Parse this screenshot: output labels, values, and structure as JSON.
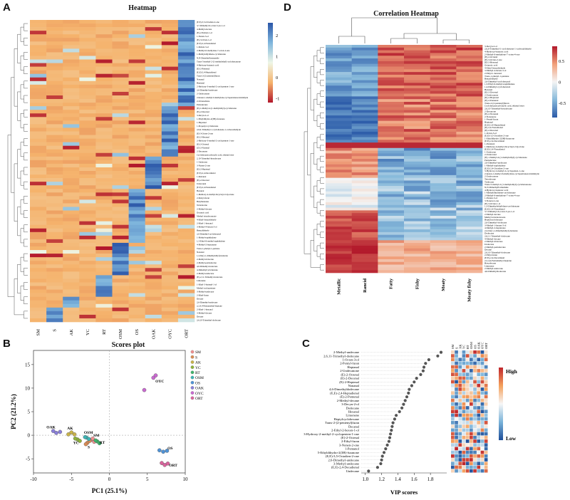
{
  "panels": {
    "a": {
      "letter": "A",
      "title": "Heatmap"
    },
    "b": {
      "letter": "B",
      "title": "Scores plot"
    },
    "c": {
      "letter": "C"
    },
    "d": {
      "letter": "D",
      "title": "Correlation Heatmap"
    }
  },
  "chart_data": [
    {
      "id": "A",
      "type": "heatmap",
      "title": "Heatmap",
      "columns": [
        "SM",
        "S",
        "AK",
        "YC",
        "RT",
        "OSM",
        "OS",
        "OAK",
        "OYC",
        "ORT"
      ],
      "colorbar": {
        "ticks": [
          2,
          1,
          0,
          -1
        ],
        "range": [
          -1.2,
          2.6
        ],
        "colors": [
          "#2b56a8",
          "#7fb6dd",
          "#eef6e6",
          "#f5b26b",
          "#b2182b"
        ]
      },
      "rows": [
        "(E,E)-3,5-Octadien-2-one",
        "3,7-Dimethyl-6-octen-3-yn-1-ol",
        "4-Methyl-decane",
        "(E)-2-Penten-1-ol",
        "1-Nonen-3-ol",
        "(E)-3-Octen-1-ol",
        "(E,E)-2,4-Nonadienal",
        "1-Penten-3-ol",
        "2-Methyl-6-methylene-7-octen-4-one",
        "1-Methylethylidene-cyclohexane",
        "N,N-Dimethylformamide",
        "Trans-5-methyl-2-(1-methylethyl)-cyclohexanone",
        "4-Hydroxy-butanoic acid",
        "(E)-2-Pentenal",
        "(E,E)-2,4-Heptadienal",
        "Trans-2-(2-pentenyl)furan",
        "Nonanal",
        "Heptanal",
        "2-Hydroxy-3-methyl-2-cyclopenten-1-one",
        "2,6-Dimethyl-undecane",
        "2-Undecanone",
        "2-hexen-1-methyl-6-methylene-cyclopentaneacetaldehyde",
        "2-Octanedione",
        "Pentadecane",
        "(E)-1-Methyl-4-(1-methylethyl)-cyclohexene",
        "(E)-2-Decenal",
        "3-Decyn-2-ol",
        "1-Ethyldihydro-2(3H)-furanone",
        "1-Heptanol",
        "1-Propenyl-cyclohexane",
        "2,6,6-Trimethyl-1-cyclohexene-1-carboxaldehyde",
        "(E)-3-Octen-2-one",
        "(E)-2-Hexenal",
        "2-Hydroxy-3-methyl-2-cyclopenten-1-one",
        "(E)-2-Octenal",
        "(Z)-2-Nonenal",
        "2-Decanone",
        "Cyclohexanecarboxylic acid, ethenyl ester",
        "2,10-Trimethyl-hexadecane",
        "1-Undecene",
        "3-Nonen-2-one",
        "(E)-2-Heptenal",
        "(E,E)-2,4-Decadienal",
        "1-Pentanol",
        "(E)-2-Decenal",
        "Undecanal",
        "(E,E)-2,4-Nonadienal",
        "Hexanal",
        "1-Methoxy-4-methyl-bicyclo[2.2.2]octane",
        "2-Pentyl-furan",
        "Butylbenzene",
        "Tetradecane",
        "2-Methyl-decane",
        "Octanoic acid",
        "Methyl tetradecanoate",
        "4-Ethyl-benzaldehyde",
        "2-Ethyl-1-hexanol",
        "3-Methyl-4-hexen-3-ol",
        "Benzaldehyde",
        "2,6-Dimethyl-cyclohexanol",
        "1-Methyl-naphthalene",
        "1,3-Ethyl-6-methyl-naphthalene",
        "4-Methyl-2-heptanone",
        "Trans-1-phenyl-1-pentene",
        "Nonanal",
        "1,4-bis(1,1-dimethylethyl)-benzene",
        "2-Methyl-tridecane",
        "2-Methyl-pentadecane",
        "4,6-Dimethyl-dodecane",
        "4-Dimethylcyclohexane",
        "2-Methyl-undecane",
        "(E)-2,11-Trimethyl-dodecane",
        "Limonene",
        "1-Ethyl-3-butenyl-1-ol",
        "Methyl-cyclopentane",
        "3-Methyl-undecane",
        "2-Ethyl-furan",
        "Decane",
        "2,6-Dimethyl-undecane",
        "2,2,4,4-Pentamethyl-heptane",
        "2-Ethyl-1-hexanol",
        "3-Methyl-decane",
        "Decane",
        "2,6,10-Trimethyl-dodecane"
      ]
    },
    {
      "id": "B",
      "type": "scatter",
      "title": "Scores plot",
      "xlabel": "PC1 (25.1%)",
      "ylabel": "PC2 (21.2%)",
      "xlim": [
        -10,
        10
      ],
      "ylim": [
        -8,
        18
      ],
      "xticks": [
        -10,
        -5,
        0,
        5,
        10
      ],
      "yticks": [
        -5,
        0,
        5,
        10,
        15
      ],
      "legend": [
        "SM",
        "S",
        "AK",
        "YC",
        "RT",
        "OSM",
        "OS",
        "OAK",
        "OYC",
        "ORT"
      ],
      "legend_colors": [
        "#ef8f8f",
        "#d98c55",
        "#c9b34a",
        "#8fb33b",
        "#3fb36b",
        "#3db4b4",
        "#4f93d6",
        "#8a7fd9",
        "#c96ad0",
        "#d9649d"
      ],
      "point_labels": [
        "OAK",
        "AK",
        "OSM",
        "YC",
        "SM",
        "S",
        "RT",
        "OYC",
        "OS",
        "ORT"
      ],
      "series": [
        {
          "name": "SM",
          "x": [
            -2.4,
            -2.0,
            -2.2
          ],
          "y": [
            -1.0,
            -1.4,
            -0.7
          ]
        },
        {
          "name": "S",
          "x": [
            -2.9,
            -2.6,
            -3.1
          ],
          "y": [
            -1.6,
            -1.2,
            -1.9
          ]
        },
        {
          "name": "AK",
          "x": [
            -5.0,
            -4.6,
            -5.4
          ],
          "y": [
            0.6,
            0.2,
            0.2
          ]
        },
        {
          "name": "YC",
          "x": [
            -4.2,
            -3.9,
            -4.5
          ],
          "y": [
            -0.9,
            -1.2,
            -0.7
          ]
        },
        {
          "name": "RT",
          "x": [
            -1.6,
            -1.3,
            -1.8
          ],
          "y": [
            -1.3,
            -1.7,
            -1.1
          ]
        },
        {
          "name": "OSM",
          "x": [
            -3.0,
            -2.7,
            -3.2
          ],
          "y": [
            -0.5,
            -0.8,
            -0.4
          ]
        },
        {
          "name": "OS",
          "x": [
            6.6,
            7.1,
            7.6
          ],
          "y": [
            -3.2,
            -3.5,
            -3.3
          ]
        },
        {
          "name": "OAK",
          "x": [
            -7.4,
            -7.0,
            -6.5
          ],
          "y": [
            0.9,
            0.5,
            0.7
          ]
        },
        {
          "name": "OYC",
          "x": [
            5.8,
            6.1,
            4.6
          ],
          "y": [
            12.2,
            12.7,
            9.6
          ]
        },
        {
          "name": "ORT",
          "x": [
            6.9,
            7.3,
            7.7
          ],
          "y": [
            -5.9,
            -6.3,
            -6.0
          ]
        }
      ]
    },
    {
      "id": "C",
      "type": "scatter",
      "xlabel": "VIP scores",
      "xlim": [
        0.95,
        2.0
      ],
      "xticks": [
        1.0,
        1.2,
        1.4,
        1.6,
        1.8
      ],
      "columns": [
        "SM",
        "S",
        "AK",
        "YC",
        "RT",
        "OSM",
        "OS",
        "OAK",
        "OYC",
        "ORT"
      ],
      "colorbar_labels": {
        "high": "High",
        "low": "Low"
      },
      "colorbar_colors": [
        "#c0262c",
        "#f4a05c",
        "#f7f7f7",
        "#7ab3d9",
        "#1e4f9a"
      ],
      "compounds": [
        "2-Methyl-undecane",
        "2,6,11-Trimethyl-dodecane",
        "1-Octen-3-ol",
        "2-Pentyl-furan",
        "Heptanal",
        "2-Undecanone",
        "(E)-2-Octenal",
        "(E)-2-Decenal",
        "(E)-2-Heptenal",
        "Nonanal",
        "4,6-Dimethyldodecane",
        "(E,E)-2,4-Heptadienal",
        "(E)-2-Pentenal",
        "2-Methyl-decane",
        "3-Decyn-2-ol",
        "Dodecane",
        "Hexanal",
        "Limonene",
        "Heptylcyclohexane",
        "Trans-2-(2-pentenyl)furan",
        "Decanal",
        "2-Ethyl-2-hexen-1-ol",
        "3-Hydroxy-2-methyl-2-cyclopenten-1-one",
        "(E)-2-Octenal",
        "2-Ethyl-furan",
        "3-Nonen-2-one",
        "1-Pentanol",
        "5-Ethyldihydro-2(3H)-furanone",
        "(E,E)-3,5-Octadien-2-one",
        "2,6-Dimethyl-undecane",
        "3-Methyl-undecane",
        "(E,E)-2,4-Decadienal",
        "Undecane"
      ],
      "vip": [
        1.93,
        1.89,
        1.78,
        1.74,
        1.72,
        1.71,
        1.68,
        1.63,
        1.6,
        1.57,
        1.54,
        1.53,
        1.51,
        1.49,
        1.47,
        1.45,
        1.42,
        1.38,
        1.36,
        1.34,
        1.33,
        1.32,
        1.31,
        1.3,
        1.29,
        1.27,
        1.25,
        1.23,
        1.21,
        1.2,
        1.19,
        1.15,
        1.04
      ]
    },
    {
      "id": "D",
      "type": "heatmap",
      "title": "Correlation Heatmap",
      "columns": [
        "Metallic",
        "Rancid",
        "Fatty",
        "Fishy",
        "Meaty",
        "Meaty fishy"
      ],
      "colorbar": {
        "ticks": [
          0.5,
          0,
          -0.5
        ],
        "range": [
          -0.85,
          0.85
        ],
        "colors": [
          "#2b5aa8",
          "#88badb",
          "#f4f4f4",
          "#f1a07a",
          "#b2182b"
        ]
      },
      "rows": [
        "3-Decyn-2-ol",
        "2,6,6-Trimethyl-1-cyclohexene-1-carboxaldehyde",
        "4-Hydroxy-butanoic acid",
        "2-Methyl-6-methylene-7-octen-4-one",
        "(E)-2-Octenal",
        "(E)-3-Octen-2-one",
        "(E)-2-Hexenal",
        "Octanoic acid",
        "4-Ethyl-benzaldehyde",
        "3-Methyl-4-hexen-3-ol",
        "2-Ethyl-1-hexanol",
        "Trans-1-phenyl-1-pentene",
        "Benzaldehyde",
        "2,6-Dimethyl-cyclohexanol",
        "1,3-Ethyl-6-methyl-naphthalene",
        "1,4-Dimethyl-cyclohexanol",
        "Hexanal",
        "(E)-2-Decenal",
        "2-Undecanone",
        "(E)-2-Heptenal",
        "(E)-2-Pentenal",
        "Trans-2-(2-pentenyl)furan",
        "Cyclohexanecarboxylic acid, ethenyl ester",
        "2,6,10-Trimethyl-hexadecane",
        "2-Decanone",
        "(E)-2-Nonenal",
        "2-Nonanone",
        "1-Pentyl-furan",
        "Heptanal",
        "(E,E)-2,4-Heptadienal",
        "(E)-2,4-Nonadienal",
        "(E)-2-Decenal",
        "1-Octen-3-ol",
        "(E,E)-3,5-Octadien-2-one",
        "1-Ethyldihydro-2(3H)-furanone",
        "(E,E)-2,4-Decadienal",
        "1-Pentanol",
        "1-Methoxy-4-methyl-bicyclo[2.2.2]octane",
        "(E,E)-2,4-Nonadienal",
        "1-Undecene",
        "2-Undecanol",
        "(E)-1-Methyl-4-(1-methylethyl)-cyclohexene",
        "Pentadecane",
        "2,6-Dimethyl-undecane",
        "1-Methyl-naphthalene",
        "(E,E)-2,4-Octadien-2-one",
        "3-Hydroxy-2-methyl-2-cyclopenten-1-one",
        "2-hexen-1-methyl-6-methylene-cyclopentaneacetaldehyde",
        "2-Undecanone",
        "Tetradecane",
        "Tridecane",
        "Trans-5-methyl-2-(1-methylethyl)-cyclohexanone",
        "N,N-Dimethylformamide",
        "4-Hydroxy-butanoic acid",
        "1-Methylethylidene-cyclohexane",
        "2-Methyl-6-methylene-7-octen-4-one",
        "1-Penten-3-ol",
        "3-Nonen-2-one",
        "(E)-3-Octen-1-ol",
        "1,3-Dimethylethylidene-cyclohexane",
        "(E,E)-2,4-Nonadienal",
        "3,7-Dimethyl-6-octen-3-yn-1-ol",
        "2-Methyl-decane",
        "Methyl tetradecanoate",
        "Heptylcyclohexane",
        "2,6-Dimethyl-dodecane",
        "3-Methyl-1-hexen-3-ol",
        "4-Methyl-2-heptanone",
        "2,4-bis(1,1-dimethylethyl)-benzene",
        "Dodecane",
        "2,6,11-Trimethyl-dodecane",
        "4-Methyl-decane",
        "2-Methyl-tridecane",
        "Undecane",
        "2-Methyl-pentadecane",
        "Decane",
        "2,6,10-Trimethyl-dodecane",
        "2-Ethyl-furan",
        "(E,E)-2,4-Decadienal",
        "2,2,4,4-Pentamethyl-heptane",
        "Hexadecane",
        "Limonene",
        "2-Methyl-undecane",
        "4,6-Dimethyldodecane"
      ]
    }
  ]
}
